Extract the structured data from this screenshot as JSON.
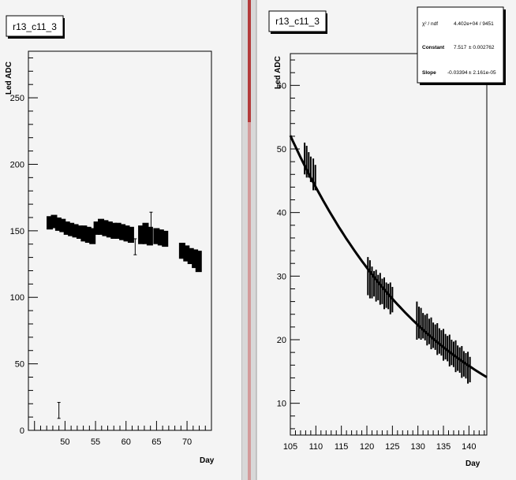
{
  "chart_data": [
    {
      "type": "scatter",
      "title": "r13_c11_3",
      "ylabel": "Led ADC",
      "xlabel": "Day",
      "xlim": [
        44,
        74
      ],
      "ylim": [
        0,
        285
      ],
      "xticks": [
        50,
        55,
        60,
        65,
        70
      ],
      "yticks": [
        0,
        50,
        100,
        150,
        200,
        250
      ],
      "series": [
        {
          "x": [
            47.5,
            48.2,
            48.9,
            49.6,
            50.3,
            51.0,
            51.7,
            52.4,
            53.1,
            53.8,
            54.5,
            55.2,
            55.9,
            56.6,
            57.3,
            58.0,
            58.7,
            59.4,
            60.1,
            60.8,
            62.5,
            63.2,
            63.9,
            65.0,
            65.7,
            66.4,
            69.2,
            69.9,
            70.6,
            71.3,
            71.9
          ],
          "y": [
            156,
            157,
            155,
            154,
            152,
            151,
            150,
            149,
            148,
            147,
            146,
            152,
            153,
            152,
            151,
            150,
            150,
            149,
            148,
            147,
            147,
            148,
            146,
            146,
            145,
            144,
            135,
            133,
            131,
            129,
            127
          ],
          "err": [
            5,
            5,
            5,
            5,
            5,
            5,
            5,
            5,
            6,
            6,
            6,
            5,
            6,
            6,
            6,
            6,
            6,
            6,
            6,
            6,
            7,
            8,
            7,
            6,
            6,
            6,
            6,
            6,
            6,
            7,
            8
          ]
        }
      ],
      "outliers": [
        {
          "x": 49,
          "y": 15,
          "err": 6
        },
        {
          "x": 61.5,
          "y": 138,
          "err": 6
        },
        {
          "x": 64.1,
          "y": 156,
          "err": 8
        }
      ]
    },
    {
      "type": "scatter",
      "title": "r13_c11_3",
      "ylabel": "Led ADC",
      "xlabel": "Day",
      "xlim": [
        105,
        143.5
      ],
      "ylim": [
        5,
        65
      ],
      "xticks": [
        105,
        110,
        115,
        120,
        125,
        130,
        135,
        140
      ],
      "yticks": [
        10,
        20,
        30,
        40,
        50,
        60
      ],
      "fit": {
        "type": "expo",
        "constant": 7.517,
        "slope": -0.03394
      },
      "stats": {
        "chi2_label": "χ² / ndf",
        "chi2_value": "4.402e+04 / 9451",
        "constant_label": "Constant",
        "constant_value": "7.517",
        "constant_err": "± 0.002762",
        "slope_label": "Slope",
        "slope_value": "-0.03394",
        "slope_err": "± 2.161e-05"
      },
      "series": [
        {
          "x": [
            107.8,
            108.2,
            108.6,
            109.0,
            109.5,
            109.9,
            120.2,
            120.6,
            121.0,
            121.4,
            121.8,
            122.2,
            122.6,
            123.0,
            123.4,
            123.8,
            124.2,
            124.6,
            125.0,
            129.8,
            130.2,
            130.6,
            131.0,
            131.4,
            131.8,
            132.2,
            132.6,
            133.0,
            133.4,
            133.8,
            134.2,
            134.6,
            135.0,
            135.4,
            135.8,
            136.2,
            136.6,
            137.0,
            137.4,
            137.8,
            138.2,
            138.6,
            139.0,
            139.4,
            139.8,
            140.2
          ],
          "y": [
            48.5,
            48.0,
            47.5,
            46.8,
            46.0,
            45.5,
            30.0,
            29.5,
            29.0,
            28.8,
            28.5,
            28.2,
            28.0,
            27.6,
            27.3,
            27.0,
            26.8,
            26.5,
            26.3,
            23.0,
            22.7,
            22.5,
            22.2,
            21.9,
            21.6,
            21.3,
            21.0,
            20.7,
            20.4,
            20.1,
            19.8,
            19.5,
            19.2,
            18.9,
            18.6,
            18.3,
            18.0,
            17.7,
            17.4,
            17.1,
            16.8,
            16.5,
            16.2,
            15.9,
            15.6,
            15.3
          ],
          "err": [
            2.5,
            2.5,
            2.0,
            2.0,
            2.5,
            2.0,
            3.0,
            3.0,
            2.5,
            2.0,
            2.5,
            2.0,
            2.5,
            2.0,
            2.5,
            2.0,
            2.0,
            2.5,
            2.0,
            3.0,
            2.5,
            2.5,
            2.0,
            2.0,
            2.5,
            2.0,
            2.5,
            2.0,
            2.0,
            2.5,
            2.0,
            2.0,
            2.5,
            2.0,
            2.0,
            2.5,
            2.0,
            2.0,
            2.5,
            2.0,
            2.0,
            2.5,
            2.0,
            2.0,
            2.5,
            2.0
          ]
        }
      ]
    }
  ]
}
